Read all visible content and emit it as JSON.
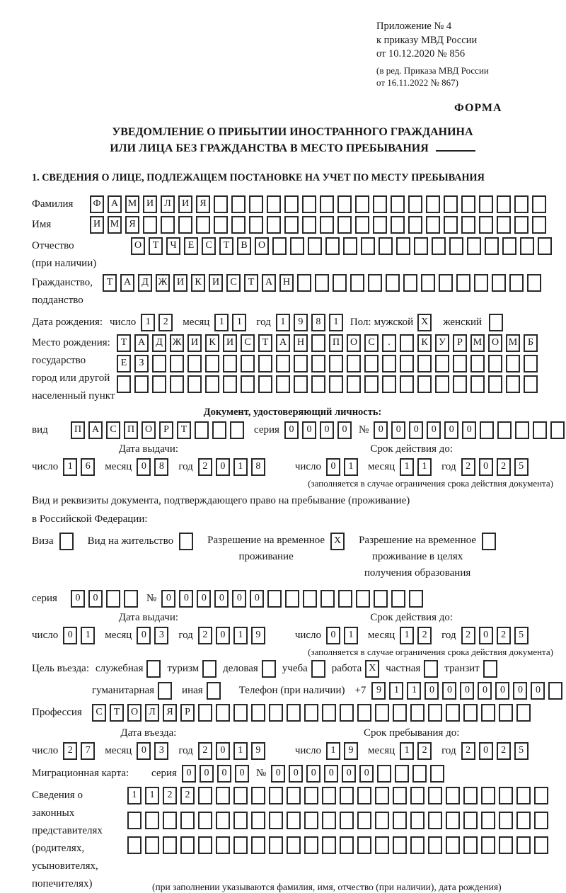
{
  "header": {
    "annex_line1": "Приложение № 4",
    "annex_line2": "к приказу МВД России",
    "annex_line3": "от 10.12.2020 № 856",
    "edition_line1": "(в ред. Приказа МВД России",
    "edition_line2": "от 16.11.2022 № 867)",
    "form_label": "ФОРМА"
  },
  "title": {
    "line1": "УВЕДОМЛЕНИЕ О ПРИБЫТИИ ИНОСТРАННОГО ГРАЖДАНИНА",
    "line2": "ИЛИ ЛИЦА БЕЗ ГРАЖДАНСТВА В МЕСТО ПРЕБЫВАНИЯ"
  },
  "section_heading": "1. СВЕДЕНИЯ О ЛИЦЕ, ПОДЛЕЖАЩЕМ ПОСТАНОВКЕ НА УЧЕТ ПО МЕСТУ ПРЕБЫВАНИЯ",
  "date_labels": {
    "day": "число",
    "month": "месяц",
    "year": "год"
  },
  "person": {
    "surname": {
      "label": "Фамилия",
      "value": {
        "text": "ФАМИЛИЯ",
        "total": 26
      }
    },
    "name": {
      "label": "Имя",
      "value": {
        "text": "ИМЯ",
        "total": 26
      }
    },
    "patronymic": {
      "label1": "Отчество",
      "label2": "(при наличии)",
      "value": {
        "text": "ОТЧЕСТВО",
        "total": 24
      }
    },
    "citizenship": {
      "label1": "Гражданство,",
      "label2": "подданство",
      "value": {
        "text": "ТАДЖИКИСТАН",
        "total": 25
      }
    },
    "birth_date": {
      "label": "Дата рождения:",
      "day": "12",
      "month": "11",
      "year": "1981"
    },
    "sex": {
      "label": "Пол:",
      "male_label": "мужской",
      "male": "X",
      "female_label": "женский",
      "female": ""
    },
    "birth_place": {
      "label1": "Место рождения:",
      "label2": "государство",
      "label3": "город или другой",
      "label4": "населенный пункт",
      "row1": {
        "text": "ТАДЖИКИСТАН ПОС. КУРМОМБ",
        "total": 24
      },
      "row2": {
        "text": "ЕЗ",
        "total": 24
      },
      "row3": {
        "text": "",
        "total": 24
      }
    }
  },
  "identity_doc": {
    "heading": "Документ, удостоверяющий личность:",
    "kind_label": "вид",
    "kind": {
      "text": "ПАСПОРТ",
      "total": 10
    },
    "series_label": "серия",
    "series": "0000",
    "number_label": "№",
    "number": {
      "text": "000000",
      "total": 11
    },
    "issue": {
      "heading": "Дата выдачи:",
      "day": "16",
      "month": "08",
      "year": "2018"
    },
    "valid": {
      "heading": "Срок действия до:",
      "day": "01",
      "month": "11",
      "year": "2025"
    },
    "note": "(заполняется в случае ограничения срока действия документа)"
  },
  "residence_doc": {
    "intro_line1": "Вид и реквизиты документа, подтверждающего право на пребывание (проживание)",
    "intro_line2": "в Российской Федерации:",
    "visa_label": "Виза",
    "visa": "",
    "residence_permit_label": "Вид на жительство",
    "residence_permit": "",
    "temp_permit_label1": "Разрешение на временное",
    "temp_permit_label2": "проживание",
    "temp_permit": "X",
    "edu_permit_label1": "Разрешение на временное",
    "edu_permit_label2": "проживание в целях",
    "edu_permit_label3": "получения образования",
    "edu_permit": "",
    "series_label": "серия",
    "series": {
      "text": "00",
      "total": 4
    },
    "number_label": "№",
    "number": {
      "text": "000000",
      "total": 15
    },
    "issue": {
      "heading": "Дата выдачи:",
      "day": "01",
      "month": "03",
      "year": "2019"
    },
    "valid": {
      "heading": "Срок действия до:",
      "day": "01",
      "month": "12",
      "year": "2025"
    },
    "note": "(заполняется в случае ограничения срока действия документа)"
  },
  "visit": {
    "purpose_label": "Цель въезда:",
    "purposes_row1": [
      {
        "label": "служебная",
        "value": ""
      },
      {
        "label": "туризм",
        "value": ""
      },
      {
        "label": "деловая",
        "value": ""
      },
      {
        "label": "учеба",
        "value": ""
      },
      {
        "label": "работа",
        "value": "X"
      },
      {
        "label": "частная",
        "value": ""
      },
      {
        "label": "транзит",
        "value": ""
      }
    ],
    "purposes_row2": [
      {
        "label": "гуманитарная",
        "value": ""
      },
      {
        "label": "иная",
        "value": ""
      }
    ],
    "phone_label": "Телефон (при наличии)",
    "phone_prefix": "+7",
    "phone": {
      "text": "9110000000",
      "total": 11
    },
    "profession_label": "Профессия",
    "profession": {
      "text": "СТОЛЯР",
      "total": 25
    },
    "entry": {
      "heading": "Дата въезда:",
      "day": "27",
      "month": "03",
      "year": "2019"
    },
    "stay": {
      "heading": "Срок пребывания до:",
      "day": "19",
      "month": "12",
      "year": "2025"
    },
    "migration_card_label": "Миграционная карта:",
    "mc_series_label": "серия",
    "mc_series": "0000",
    "mc_number_label": "№",
    "mc_number": {
      "text": "000000",
      "total": 10
    }
  },
  "representatives": {
    "label1": "Сведения о",
    "label2": "законных",
    "label3": "представителях",
    "label4": "(родителях,",
    "label5": "усыновителях,",
    "label6": "попечителях)",
    "row1": {
      "text": "1122",
      "total": 24
    },
    "row2": {
      "text": "",
      "total": 24
    },
    "row3": {
      "text": "",
      "total": 24
    },
    "note": "(при заполнении указываются фамилия, имя, отчество (при наличии), дата рождения)"
  }
}
